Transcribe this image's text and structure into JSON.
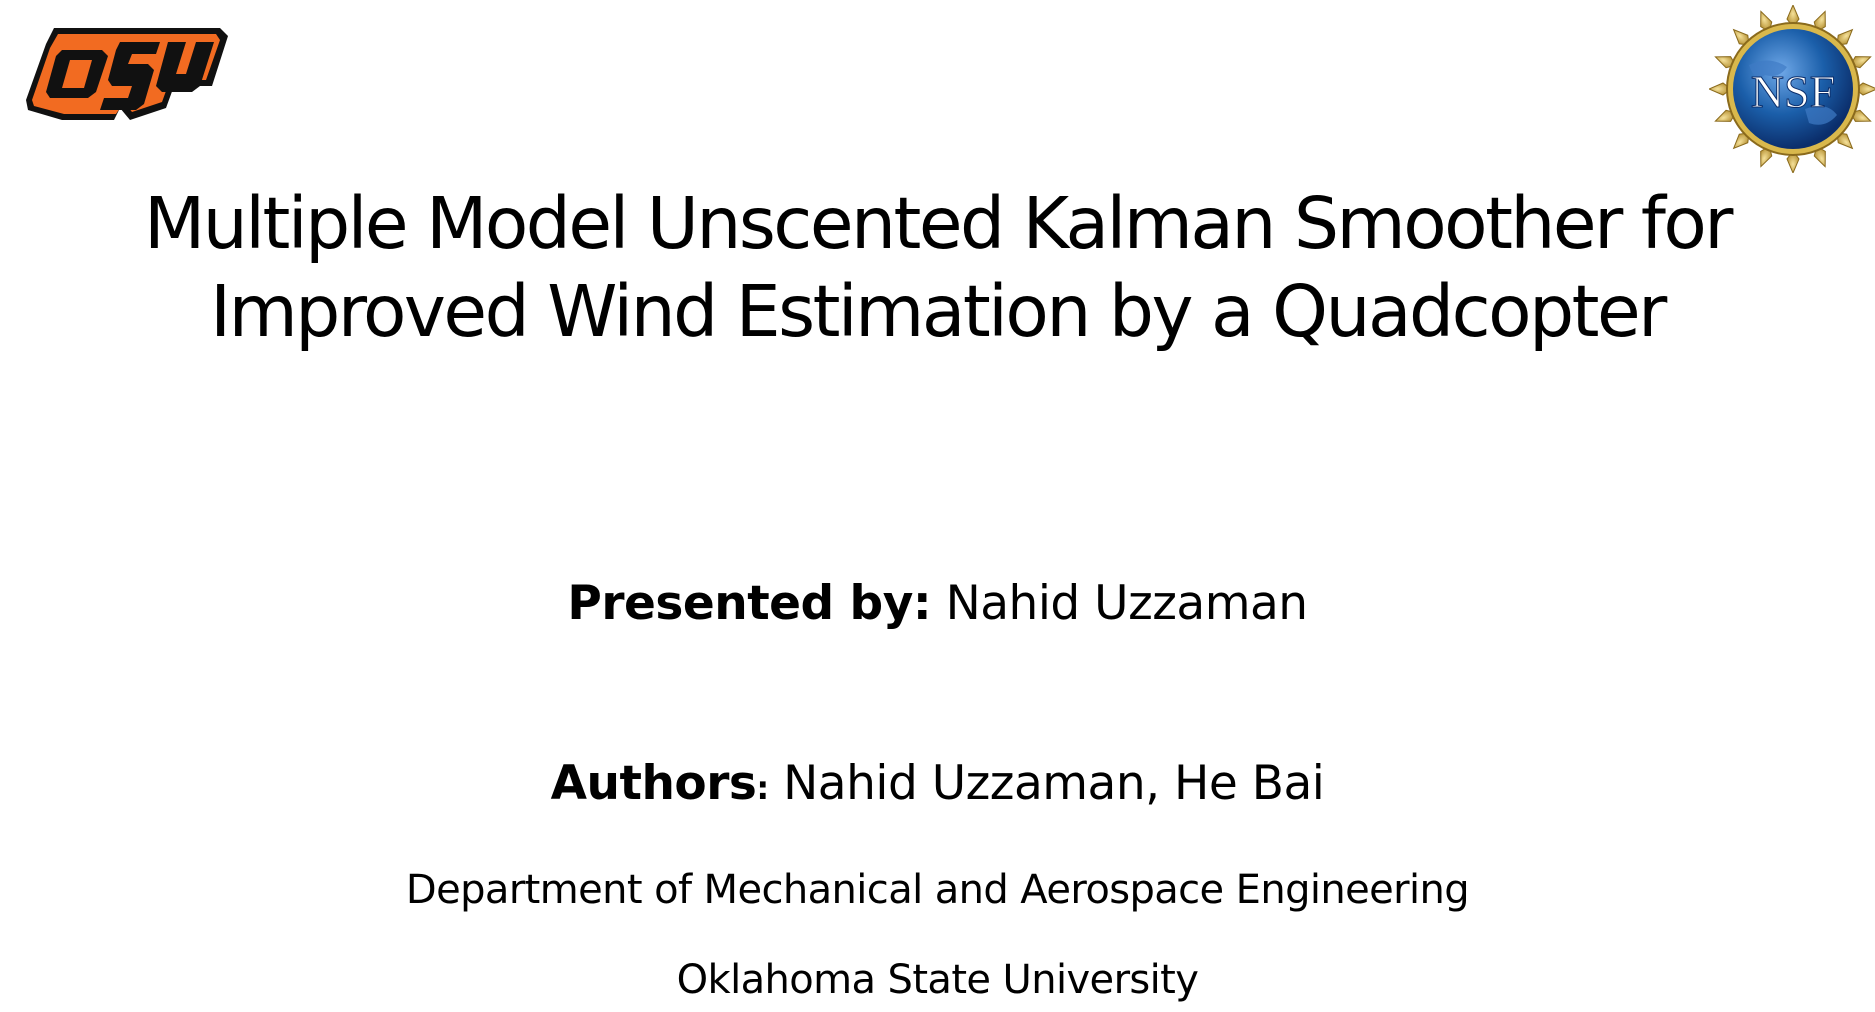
{
  "logos": {
    "left": {
      "icon": "osu-logo",
      "text": "OSU",
      "color": "#F26B21",
      "outline": "#111111"
    },
    "right": {
      "icon": "nsf-logo",
      "text": "NSF",
      "globe": "#1B5FAA",
      "stars": "#C9A132"
    }
  },
  "title": {
    "line1": "Multiple Model Unscented Kalman Smoother for",
    "line2": "Improved Wind Estimation by a Quadcopter"
  },
  "presented": {
    "label": "Presented by:",
    "name": "Nahid Uzzaman"
  },
  "authors": {
    "label": "Authors",
    "colon": ":",
    "names": "Nahid Uzzaman, He Bai"
  },
  "department": "Department of Mechanical and Aerospace Engineering",
  "university": "Oklahoma State University"
}
